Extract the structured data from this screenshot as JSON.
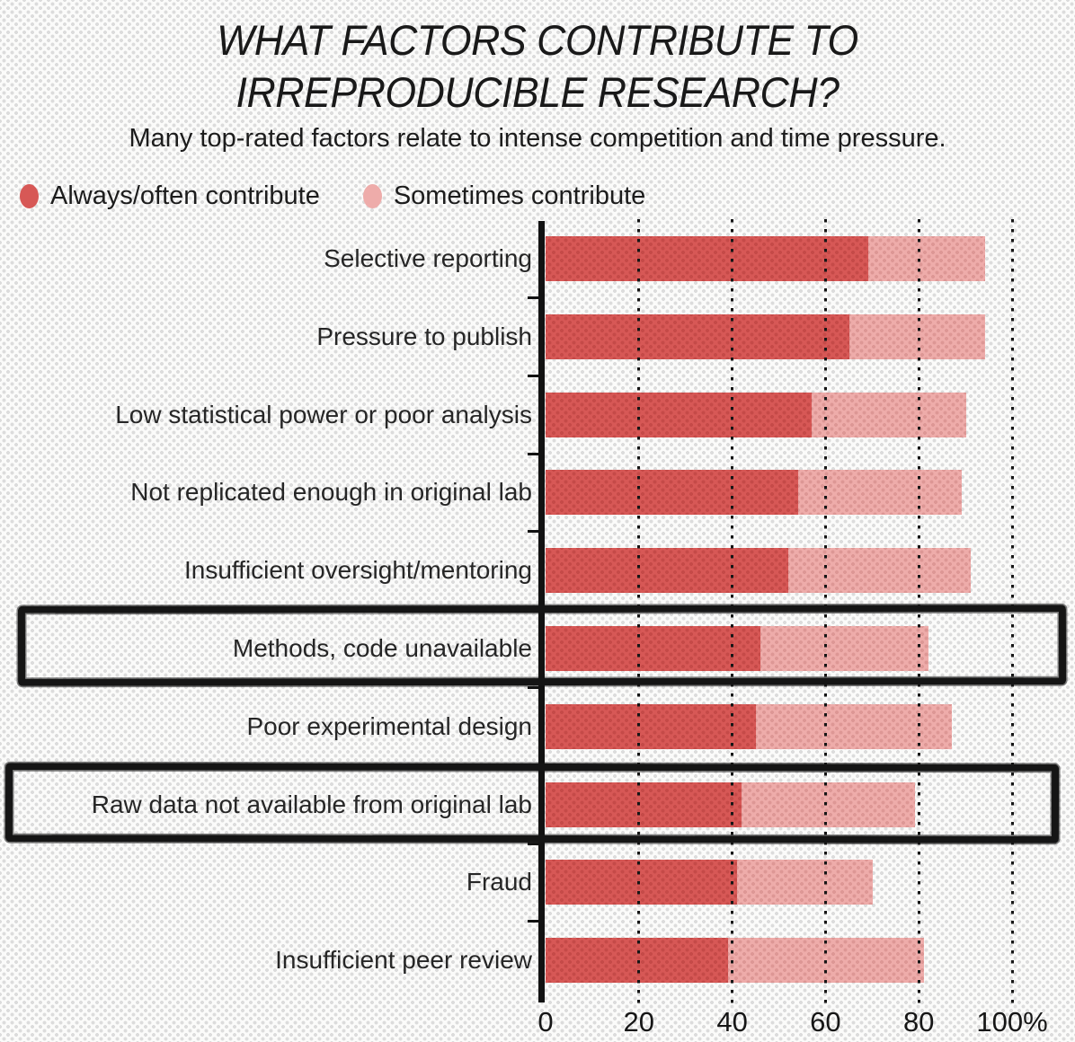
{
  "title": {
    "line1": "WHAT FACTORS CONTRIBUTE TO",
    "line2": "IRREPRODUCIBLE RESEARCH?"
  },
  "subtitle": "Many top-rated factors relate to intense competition and time pressure.",
  "legend": [
    {
      "label": "Always/often contribute",
      "color": "#d75856"
    },
    {
      "label": "Sometimes contribute",
      "color": "#eeacaa"
    }
  ],
  "colors": {
    "always": "#d75856",
    "always_dots": "#c54a48",
    "sometimes": "#eeacaa",
    "sometimes_dots": "#dd9795",
    "axis": "#121212",
    "background": "#fbfbfa",
    "background_dots": "#dcdcdc",
    "highlight_box": "#151515"
  },
  "chart_data": {
    "type": "bar",
    "orientation": "horizontal",
    "stacked": true,
    "title": "WHAT FACTORS CONTRIBUTE TO IRREPRODUCIBLE RESEARCH?",
    "subtitle": "Many top-rated factors relate to intense competition and time pressure.",
    "categories": [
      "Selective reporting",
      "Pressure to publish",
      "Low statistical power or poor analysis",
      "Not replicated enough in original lab",
      "Insufficient oversight/mentoring",
      "Methods, code unavailable",
      "Poor experimental design",
      "Raw data not available from original lab",
      "Fraud",
      "Insufficient peer review"
    ],
    "series": [
      {
        "name": "Always/often contribute",
        "values": [
          69,
          65,
          57,
          54,
          52,
          46,
          45,
          42,
          41,
          39
        ]
      },
      {
        "name": "Sometimes contribute",
        "values": [
          25,
          29,
          33,
          35,
          39,
          36,
          42,
          37,
          29,
          42
        ]
      }
    ],
    "totals": [
      94,
      94,
      90,
      89,
      91,
      82,
      87,
      79,
      70,
      81
    ],
    "highlighted_categories": [
      "Methods, code unavailable",
      "Raw data not available from original lab"
    ],
    "x_ticks": [
      "0",
      "20",
      "40",
      "60",
      "80",
      "100%"
    ],
    "xlim": [
      0,
      100
    ],
    "grid": "dotted-vertical",
    "legend_position": "top-left"
  }
}
